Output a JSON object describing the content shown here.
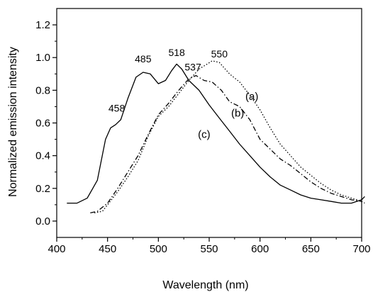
{
  "chart_data": {
    "type": "line",
    "title": "",
    "xlabel": "Wavelength (nm)",
    "ylabel": "Normalized emission intensity",
    "xlim": [
      400,
      700
    ],
    "ylim": [
      -0.1,
      1.3
    ],
    "x_ticks": [
      "400",
      "450",
      "500",
      "550",
      "600",
      "650",
      "700"
    ],
    "y_ticks": [
      "0.0",
      "0.2",
      "0.4",
      "0.6",
      "0.8",
      "1.0",
      "1.2"
    ],
    "grid": false,
    "legend": "none",
    "series": [
      {
        "name": "(a)",
        "style": "dotted",
        "label_at": [
          592,
          0.74
        ],
        "points": [
          [
            437,
            0.05
          ],
          [
            445,
            0.06
          ],
          [
            450,
            0.1
          ],
          [
            460,
            0.18
          ],
          [
            470,
            0.27
          ],
          [
            480,
            0.37
          ],
          [
            490,
            0.52
          ],
          [
            500,
            0.64
          ],
          [
            510,
            0.7
          ],
          [
            520,
            0.78
          ],
          [
            530,
            0.86
          ],
          [
            540,
            0.93
          ],
          [
            548,
            0.96
          ],
          [
            553,
            0.98
          ],
          [
            560,
            0.97
          ],
          [
            570,
            0.9
          ],
          [
            580,
            0.85
          ],
          [
            590,
            0.77
          ],
          [
            600,
            0.68
          ],
          [
            610,
            0.57
          ],
          [
            620,
            0.47
          ],
          [
            630,
            0.4
          ],
          [
            640,
            0.33
          ],
          [
            650,
            0.28
          ],
          [
            660,
            0.23
          ],
          [
            670,
            0.19
          ],
          [
            680,
            0.16
          ],
          [
            690,
            0.14
          ],
          [
            700,
            0.12
          ],
          [
            703,
            0.11
          ]
        ]
      },
      {
        "name": "(b)",
        "style": "dash-dot",
        "label_at": [
          578,
          0.64
        ],
        "points": [
          [
            433,
            0.05
          ],
          [
            440,
            0.06
          ],
          [
            450,
            0.11
          ],
          [
            460,
            0.2
          ],
          [
            470,
            0.3
          ],
          [
            480,
            0.4
          ],
          [
            490,
            0.53
          ],
          [
            500,
            0.65
          ],
          [
            510,
            0.72
          ],
          [
            520,
            0.8
          ],
          [
            530,
            0.87
          ],
          [
            537,
            0.89
          ],
          [
            545,
            0.86
          ],
          [
            553,
            0.85
          ],
          [
            562,
            0.8
          ],
          [
            570,
            0.73
          ],
          [
            580,
            0.7
          ],
          [
            590,
            0.62
          ],
          [
            600,
            0.5
          ],
          [
            610,
            0.44
          ],
          [
            620,
            0.38
          ],
          [
            630,
            0.34
          ],
          [
            640,
            0.29
          ],
          [
            650,
            0.24
          ],
          [
            660,
            0.2
          ],
          [
            670,
            0.17
          ],
          [
            680,
            0.15
          ],
          [
            690,
            0.13
          ],
          [
            700,
            0.12
          ]
        ]
      },
      {
        "name": "(c)",
        "style": "solid",
        "label_at": [
          545,
          0.51
        ],
        "points": [
          [
            410,
            0.11
          ],
          [
            420,
            0.11
          ],
          [
            430,
            0.14
          ],
          [
            440,
            0.25
          ],
          [
            448,
            0.5
          ],
          [
            453,
            0.57
          ],
          [
            458,
            0.59
          ],
          [
            463,
            0.62
          ],
          [
            470,
            0.75
          ],
          [
            478,
            0.88
          ],
          [
            485,
            0.91
          ],
          [
            492,
            0.9
          ],
          [
            500,
            0.84
          ],
          [
            507,
            0.86
          ],
          [
            513,
            0.92
          ],
          [
            518,
            0.96
          ],
          [
            523,
            0.93
          ],
          [
            530,
            0.86
          ],
          [
            540,
            0.8
          ],
          [
            550,
            0.71
          ],
          [
            560,
            0.63
          ],
          [
            570,
            0.55
          ],
          [
            580,
            0.47
          ],
          [
            590,
            0.4
          ],
          [
            600,
            0.33
          ],
          [
            610,
            0.27
          ],
          [
            620,
            0.22
          ],
          [
            630,
            0.19
          ],
          [
            640,
            0.16
          ],
          [
            650,
            0.14
          ],
          [
            660,
            0.13
          ],
          [
            670,
            0.12
          ],
          [
            680,
            0.11
          ],
          [
            690,
            0.11
          ],
          [
            700,
            0.13
          ],
          [
            703,
            0.15
          ]
        ]
      }
    ],
    "annotations": [
      {
        "text": "458",
        "x": 459,
        "y": 0.67
      },
      {
        "text": "485",
        "x": 485,
        "y": 0.97
      },
      {
        "text": "518",
        "x": 518,
        "y": 1.01
      },
      {
        "text": "537",
        "x": 534,
        "y": 0.92
      },
      {
        "text": "550",
        "x": 560,
        "y": 1.0
      }
    ]
  }
}
